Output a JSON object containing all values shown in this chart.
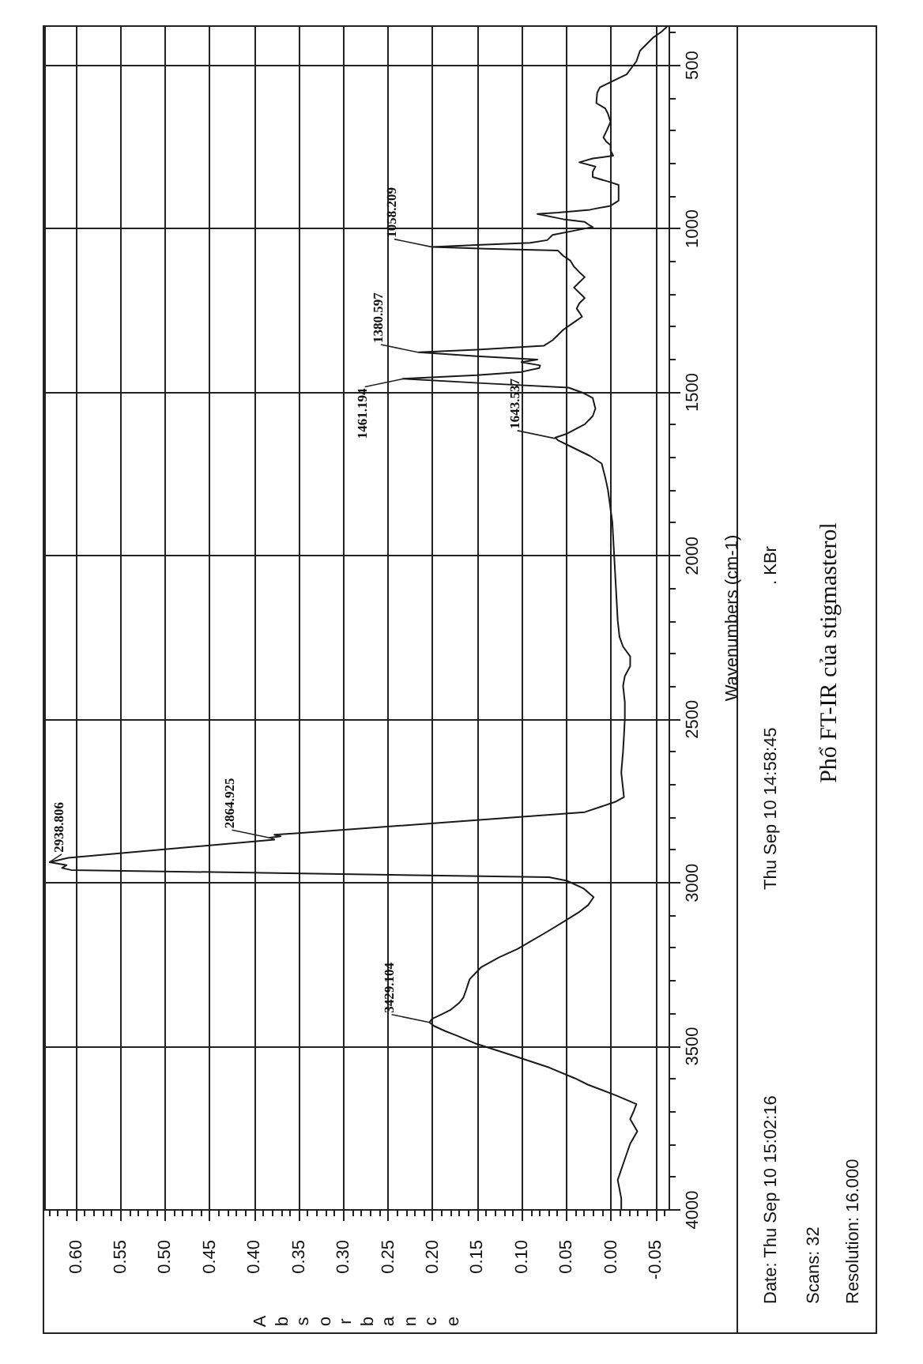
{
  "chart_data": {
    "type": "line",
    "title": "Phổ FT-IR của stigmasterol",
    "xlabel": "Absorbance",
    "ylabel": "Wavenumbers (cm-1)",
    "x": [
      -0.012,
      -0.012,
      -0.008,
      -0.015,
      -0.022,
      -0.03,
      -0.022,
      -0.026,
      -0.029,
      -0.005,
      0.025,
      0.04,
      0.069,
      0.11,
      0.152,
      0.172,
      0.186,
      0.198,
      0.203,
      0.2,
      0.19,
      0.179,
      0.17,
      0.165,
      0.162,
      0.158,
      0.145,
      0.125,
      0.104,
      0.07,
      0.052,
      0.036,
      0.025,
      0.019,
      0.03,
      0.049,
      0.069,
      0.605,
      0.615,
      0.61,
      0.629,
      0.608,
      0.377,
      0.382,
      0.37,
      0.377,
      0.353,
      0.029,
      -0.005,
      -0.015,
      -0.012,
      -0.014,
      -0.015,
      -0.016,
      -0.016,
      -0.014,
      -0.016,
      -0.022,
      -0.022,
      -0.014,
      -0.01,
      -0.008,
      -0.006,
      -0.004,
      -0.002,
      0.003,
      0.006,
      0.01,
      0.023,
      0.047,
      0.059,
      0.062,
      0.05,
      0.029,
      0.02,
      0.017,
      0.02,
      0.03,
      0.047,
      0.14,
      0.233,
      0.15,
      0.1,
      0.08,
      0.079,
      0.1,
      0.082,
      0.15,
      0.215,
      0.15,
      0.075,
      0.065,
      0.053,
      0.042,
      0.032,
      0.035,
      0.038,
      0.035,
      0.029,
      0.035,
      0.041,
      0.035,
      0.029,
      0.035,
      0.041,
      0.045,
      0.053,
      0.059,
      0.14,
      0.2,
      0.15,
      0.09,
      0.071,
      0.065,
      0.035,
      0.02,
      0.025,
      0.029,
      0.053,
      0.082,
      0.059,
      0.023,
      0,
      -0.009,
      -0.009,
      -0.009,
      0,
      0.02,
      0.02,
      0.017,
      0.035,
      0.02,
      -0.003,
      0,
      0,
      0.005,
      0.008,
      0.004,
      0,
      0.003,
      0.006,
      0.016,
      0.015,
      0.012,
      -0.006,
      -0.018,
      -0.029,
      -0.033,
      -0.048,
      -0.057,
      -0.063
    ],
    "values": [
      4000,
      3967,
      3911,
      3855,
      3800,
      3762,
      3725,
      3700,
      3679,
      3651,
      3620,
      3600,
      3567,
      3530,
      3493,
      3470,
      3455,
      3440,
      3429,
      3418,
      3405,
      3390,
      3370,
      3353,
      3330,
      3297,
      3260,
      3230,
      3204,
      3150,
      3120,
      3093,
      3070,
      3046,
      3020,
      2996,
      2985,
      2963,
      2957,
      2948,
      2939,
      2926,
      2870,
      2864,
      2860,
      2855,
      2851,
      2786,
      2755,
      2740,
      2665,
      2600,
      2554,
      2500,
      2450,
      2400,
      2370,
      2340,
      2310,
      2280,
      2250,
      2200,
      2100,
      2000,
      1900,
      1800,
      1762,
      1720,
      1697,
      1665,
      1649,
      1641,
      1630,
      1600,
      1575,
      1552,
      1520,
      1505,
      1488,
      1475,
      1461,
      1450,
      1440,
      1428,
      1420,
      1410,
      1402,
      1392,
      1380,
      1372,
      1360,
      1343,
      1311,
      1290,
      1271,
      1258,
      1246,
      1230,
      1214,
      1198,
      1182,
      1166,
      1150,
      1135,
      1118,
      1100,
      1085,
      1069,
      1063,
      1058,
      1052,
      1045,
      1037,
      1021,
      1005,
      997,
      989,
      981,
      973,
      957,
      953,
      944,
      932,
      916,
      900,
      868,
      860,
      844,
      828,
      812,
      799,
      787,
      779,
      763,
      747,
      735,
      723,
      700,
      675,
      650,
      634,
      618,
      586,
      570,
      546,
      530,
      490,
      458,
      417,
      400,
      385
    ],
    "color": "#1a1a1a",
    "xlim": [
      0.635,
      -0.065
    ],
    "ylim": [
      4000,
      380
    ],
    "xticks": [
      {
        "value": 0.63,
        "label": null
      },
      {
        "value": 0.62,
        "label": null
      },
      {
        "value": 0.61,
        "label": null
      },
      {
        "value": 0.6,
        "label": "0.60"
      },
      {
        "value": 0.59,
        "label": null
      },
      {
        "value": 0.58,
        "label": null
      },
      {
        "value": 0.57,
        "label": null
      },
      {
        "value": 0.56,
        "label": null
      },
      0.55,
      {
        "value": 0.54,
        "label": null
      },
      {
        "value": 0.53,
        "label": null
      },
      {
        "value": 0.52,
        "label": null
      },
      {
        "value": 0.51,
        "label": null
      },
      {
        "value": 0.5,
        "label": "0.50"
      },
      {
        "value": 0.49,
        "label": null
      },
      {
        "value": 0.48,
        "label": null
      },
      {
        "value": 0.47,
        "label": null
      },
      {
        "value": 0.46,
        "label": null
      },
      0.45,
      {
        "value": 0.44,
        "label": null
      },
      {
        "value": 0.43,
        "label": null
      },
      {
        "value": 0.42,
        "label": null
      },
      {
        "value": 0.41,
        "label": null
      },
      {
        "value": 0.4,
        "label": "0.40"
      },
      {
        "value": 0.39,
        "label": null
      },
      {
        "value": 0.38,
        "label": null
      },
      {
        "value": 0.37,
        "label": null
      },
      {
        "value": 0.36,
        "label": null
      },
      0.35,
      {
        "value": 0.34,
        "label": null
      },
      {
        "value": 0.33,
        "label": null
      },
      {
        "value": 0.32,
        "label": null
      },
      {
        "value": 0.31,
        "label": null
      },
      {
        "value": 0.3,
        "label": "0.30"
      },
      {
        "value": 0.29,
        "label": null
      },
      {
        "value": 0.28,
        "label": null
      },
      {
        "value": 0.27,
        "label": null
      },
      {
        "value": 0.26,
        "label": null
      },
      0.25,
      {
        "value": 0.24,
        "label": null
      },
      {
        "value": 0.23,
        "label": null
      },
      {
        "value": 0.22,
        "label": null
      },
      {
        "value": 0.21,
        "label": null
      },
      {
        "value": 0.2,
        "label": "0.20"
      },
      {
        "value": 0.19,
        "label": null
      },
      {
        "value": 0.18,
        "label": null
      },
      {
        "value": 0.17,
        "label": null
      },
      {
        "value": 0.16,
        "label": null
      },
      0.15,
      {
        "value": 0.14,
        "label": null
      },
      {
        "value": 0.13,
        "label": null
      },
      {
        "value": 0.12,
        "label": null
      },
      {
        "value": 0.11,
        "label": null
      },
      {
        "value": 0.1,
        "label": "0.10"
      },
      {
        "value": 0.09,
        "label": null
      },
      {
        "value": 0.08,
        "label": null
      },
      {
        "value": 0.07,
        "label": null
      },
      {
        "value": 0.06,
        "label": null
      },
      0.05,
      {
        "value": 0.04,
        "label": null
      },
      {
        "value": 0.03,
        "label": null
      },
      {
        "value": 0.02,
        "label": null
      },
      {
        "value": 0.01,
        "label": null
      },
      {
        "value": 0,
        "label": "0.00"
      },
      {
        "value": -0.01,
        "label": null
      },
      {
        "value": -0.02,
        "label": null
      },
      {
        "value": -0.03,
        "label": null
      },
      {
        "value": -0.04,
        "label": null
      },
      -0.05,
      {
        "value": -0.06,
        "label": null
      }
    ],
    "yticks": [
      4000,
      {
        "value": 3900,
        "label": null
      },
      {
        "value": 3800,
        "label": null
      },
      {
        "value": 3700,
        "label": null
      },
      {
        "value": 3600,
        "label": null
      },
      3500,
      {
        "value": 3400,
        "label": null
      },
      {
        "value": 3300,
        "label": null
      },
      {
        "value": 3200,
        "label": null
      },
      {
        "value": 3100,
        "label": null
      },
      3000,
      {
        "value": 2900,
        "label": null
      },
      {
        "value": 2800,
        "label": null
      },
      {
        "value": 2700,
        "label": null
      },
      {
        "value": 2600,
        "label": null
      },
      2500,
      {
        "value": 2400,
        "label": null
      },
      {
        "value": 2300,
        "label": null
      },
      {
        "value": 2200,
        "label": null
      },
      {
        "value": 2100,
        "label": null
      },
      2000,
      {
        "value": 1900,
        "label": null
      },
      {
        "value": 1800,
        "label": null
      },
      {
        "value": 1700,
        "label": null
      },
      {
        "value": 1600,
        "label": null
      },
      1500,
      {
        "value": 1400,
        "label": null
      },
      {
        "value": 1300,
        "label": null
      },
      {
        "value": 1200,
        "label": null
      },
      {
        "value": 1100,
        "label": null
      },
      1000,
      {
        "value": 900,
        "label": null
      },
      {
        "value": 800,
        "label": null
      },
      {
        "value": 700,
        "label": null
      },
      {
        "value": 600,
        "label": null
      },
      500,
      {
        "value": 400,
        "label": null
      }
    ],
    "grid": true,
    "annotations": [
      "Date: Thu Sep 10 15:02:16",
      "Scans: 32",
      "Resolution: 16.000",
      "Thu Sep 10 14:58:45",
      ". KBr",
      {
        "text": "3429.104",
        "x": 0.203,
        "y": 3429.104
      },
      {
        "text": "2938.806",
        "x": 0.629,
        "y": 2938.806
      },
      {
        "text": "2864.925",
        "x": 0.382,
        "y": 2864.925
      },
      {
        "text": "1643.537",
        "x": 0.062,
        "y": 1643.537
      },
      {
        "text": "1461.194",
        "x": 0.233,
        "y": 1461.194
      },
      {
        "text": "1380.597",
        "x": 0.215,
        "y": 1380.597
      },
      {
        "text": "1058.209",
        "x": 0.2,
        "y": 1058.209
      }
    ]
  }
}
